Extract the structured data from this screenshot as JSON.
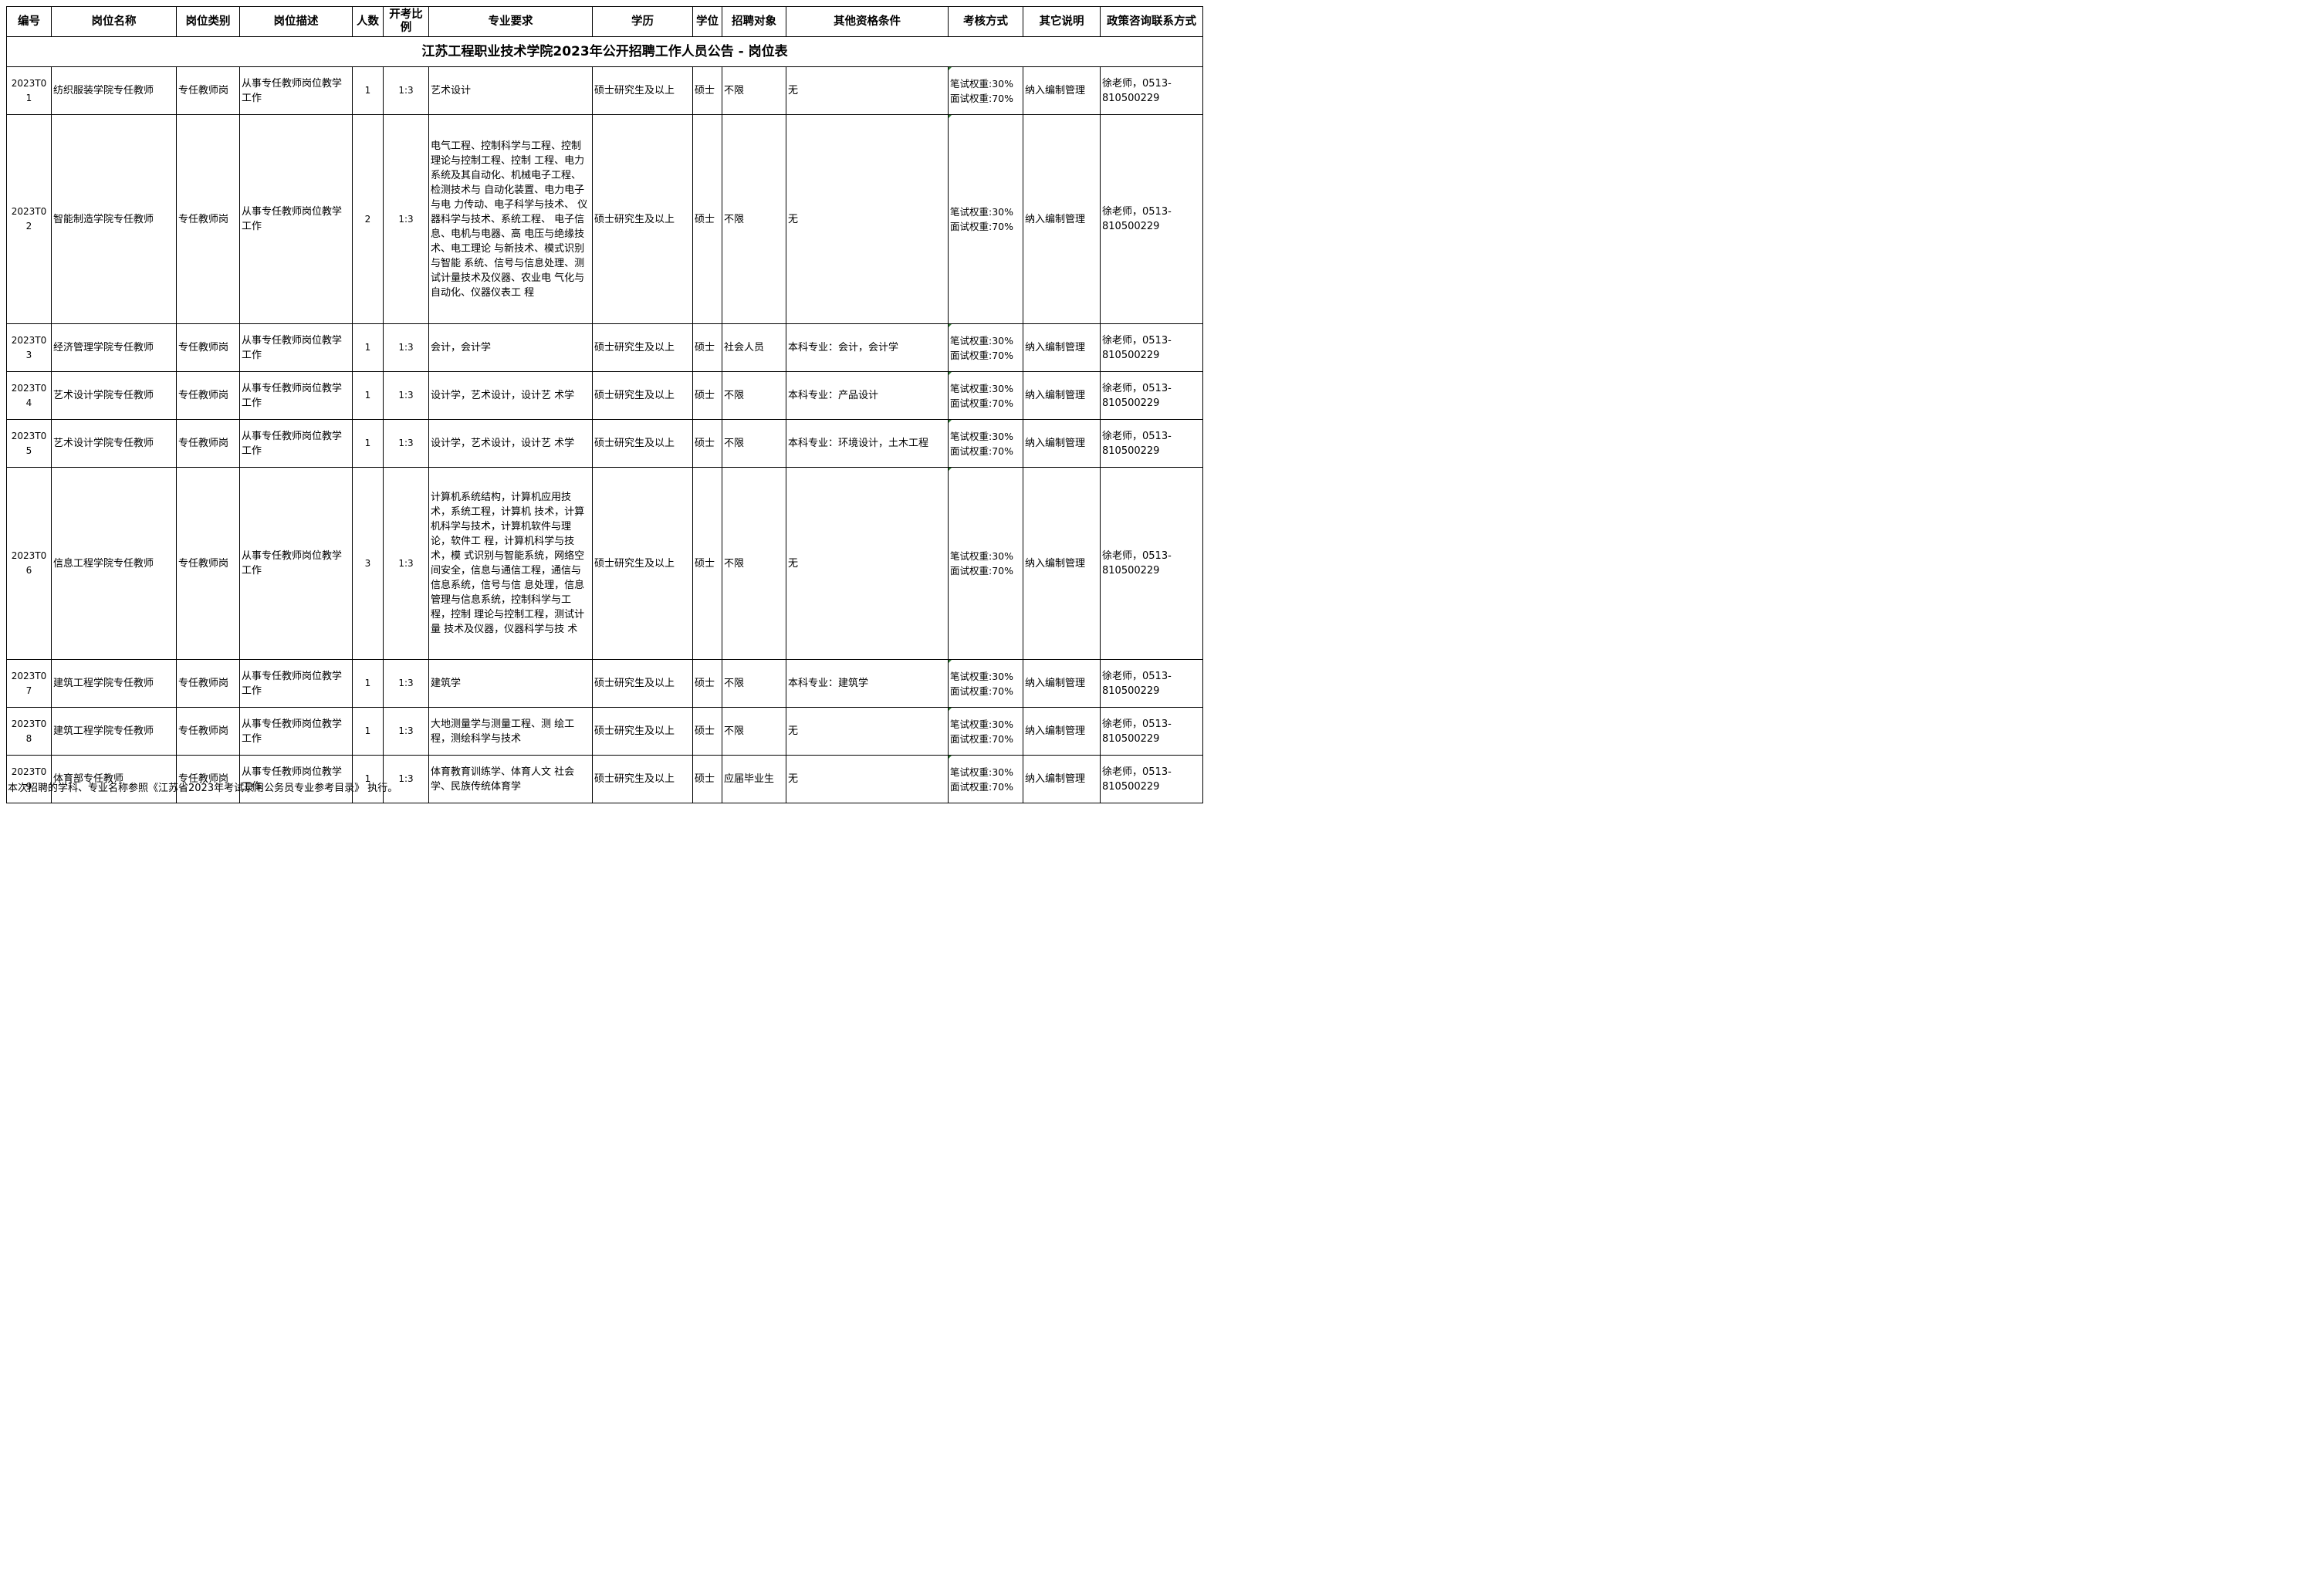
{
  "title": "江苏工程职业技术学院2023年公开招聘工作人员公告 - 岗位表",
  "headers": [
    "编号",
    "岗位名称",
    "岗位类别",
    "岗位描述",
    "人数",
    "开考比例",
    "专业要求",
    "学历",
    "学位",
    "招聘对象",
    "其他资格条件",
    "考核方式",
    "其它说明",
    "政策咨询联系方式"
  ],
  "rows": [
    {
      "id": "2023T0 1",
      "name": "纺织服装学院专任教师",
      "category": "专任教师岗",
      "description": "从事专任教师岗位教学工作",
      "count": "1",
      "ratio": "1:3",
      "major": "艺术设计",
      "education": "硕士研究生及以上",
      "degree": "硕士",
      "target": "不限",
      "other": "无",
      "method_1": "笔试权重:30%",
      "method_2": "面试权重:70%",
      "note": "纳入编制管理",
      "contact": "徐老师，0513-810500229"
    },
    {
      "id": "2023T0 2",
      "name": "智能制造学院专任教师",
      "category": "专任教师岗",
      "description": "从事专任教师岗位教学工作",
      "count": "2",
      "ratio": "1:3",
      "major": "电气工程、控制科学与工程、控制理论与控制工程、控制 工程、电力系统及其自动化、机械电子工程、检测技术与 自动化装置、电力电子与电 力传动、电子科学与技术、 仪器科学与技术、系统工程、 电子信息、电机与电器、高 电压与绝缘技术、电工理论 与新技术、模式识别与智能 系统、信号与信息处理、测 试计量技术及仪器、农业电 气化与自动化、仪器仪表工 程",
      "education": "硕士研究生及以上",
      "degree": "硕士",
      "target": "不限",
      "other": "无",
      "method_1": "笔试权重:30%",
      "method_2": "面试权重:70%",
      "note": "纳入编制管理",
      "contact": "徐老师，0513-810500229"
    },
    {
      "id": "2023T0 3",
      "name": "经济管理学院专任教师",
      "category": "专任教师岗",
      "description": "从事专任教师岗位教学工作",
      "count": "1",
      "ratio": "1:3",
      "major": "会计，会计学",
      "education": "硕士研究生及以上",
      "degree": "硕士",
      "target": "社会人员",
      "other": "本科专业：会计，会计学",
      "method_1": "笔试权重:30%",
      "method_2": "面试权重:70%",
      "note": "纳入编制管理",
      "contact": "徐老师，0513-810500229"
    },
    {
      "id": "2023T0 4",
      "name": "艺术设计学院专任教师",
      "category": "专任教师岗",
      "description": "从事专任教师岗位教学工作",
      "count": "1",
      "ratio": "1:3",
      "major": "设计学，艺术设计，设计艺 术学",
      "education": "硕士研究生及以上",
      "degree": "硕士",
      "target": "不限",
      "other": "本科专业：产品设计",
      "method_1": "笔试权重:30%",
      "method_2": "面试权重:70%",
      "note": "纳入编制管理",
      "contact": "徐老师，0513-810500229"
    },
    {
      "id": "2023T0 5",
      "name": "艺术设计学院专任教师",
      "category": "专任教师岗",
      "description": "从事专任教师岗位教学工作",
      "count": "1",
      "ratio": "1:3",
      "major": "设计学，艺术设计，设计艺 术学",
      "education": "硕士研究生及以上",
      "degree": "硕士",
      "target": "不限",
      "other": "本科专业：环境设计，土木工程",
      "method_1": "笔试权重:30%",
      "method_2": "面试权重:70%",
      "note": "纳入编制管理",
      "contact": "徐老师，0513-810500229"
    },
    {
      "id": "2023T0 6",
      "name": "信息工程学院专任教师",
      "category": "专任教师岗",
      "description": "从事专任教师岗位教学工作",
      "count": "3",
      "ratio": "1:3",
      "major": "计算机系统结构，计算机应用技术，系统工程，计算机 技术，计算机科学与技术，计算机软件与理论，软件工 程，计算机科学与技术，模 式识别与智能系统，网络空间安全，信息与通信工程，通信与信息系统，信号与信 息处理，信息管理与信息系统，控制科学与工程，控制 理论与控制工程，测试计量 技术及仪器，仪器科学与技 术",
      "education": "硕士研究生及以上",
      "degree": "硕士",
      "target": "不限",
      "other": "无",
      "method_1": "笔试权重:30%",
      "method_2": "面试权重:70%",
      "note": "纳入编制管理",
      "contact": "徐老师，0513-810500229"
    },
    {
      "id": "2023T0 7",
      "name": "建筑工程学院专任教师",
      "category": "专任教师岗",
      "description": "从事专任教师岗位教学工作",
      "count": "1",
      "ratio": "1:3",
      "major": "建筑学",
      "education": "硕士研究生及以上",
      "degree": "硕士",
      "target": "不限",
      "other": "本科专业：建筑学",
      "method_1": "笔试权重:30%",
      "method_2": "面试权重:70%",
      "note": "纳入编制管理",
      "contact": "徐老师，0513-810500229"
    },
    {
      "id": "2023T0 8",
      "name": "建筑工程学院专任教师",
      "category": "专任教师岗",
      "description": "从事专任教师岗位教学工作",
      "count": "1",
      "ratio": "1:3",
      "major": "大地测量学与测量工程、测 绘工程，测绘科学与技术",
      "education": "硕士研究生及以上",
      "degree": "硕士",
      "target": "不限",
      "other": "无",
      "method_1": "笔试权重:30%",
      "method_2": "面试权重:70%",
      "note": "纳入编制管理",
      "contact": "徐老师，0513-810500229"
    },
    {
      "id": "2023T0 9",
      "name": "体育部专任教师",
      "category": "专任教师岗",
      "description": "从事专任教师岗位教学工作",
      "count": "1",
      "ratio": "1:3",
      "major": "体育教育训练学、体育人文 社会学、民族传统体育学",
      "education": "硕士研究生及以上",
      "degree": "硕士",
      "target": "应届毕业生",
      "other": "无",
      "method_1": "笔试权重:30%",
      "method_2": "面试权重:70%",
      "note": "纳入编制管理",
      "contact": "徐老师，0513-810500229"
    }
  ],
  "footnote": "本次招聘的学科、专业名称参照《江苏省2023年考试录用公务员专业参考目录》 执行。"
}
